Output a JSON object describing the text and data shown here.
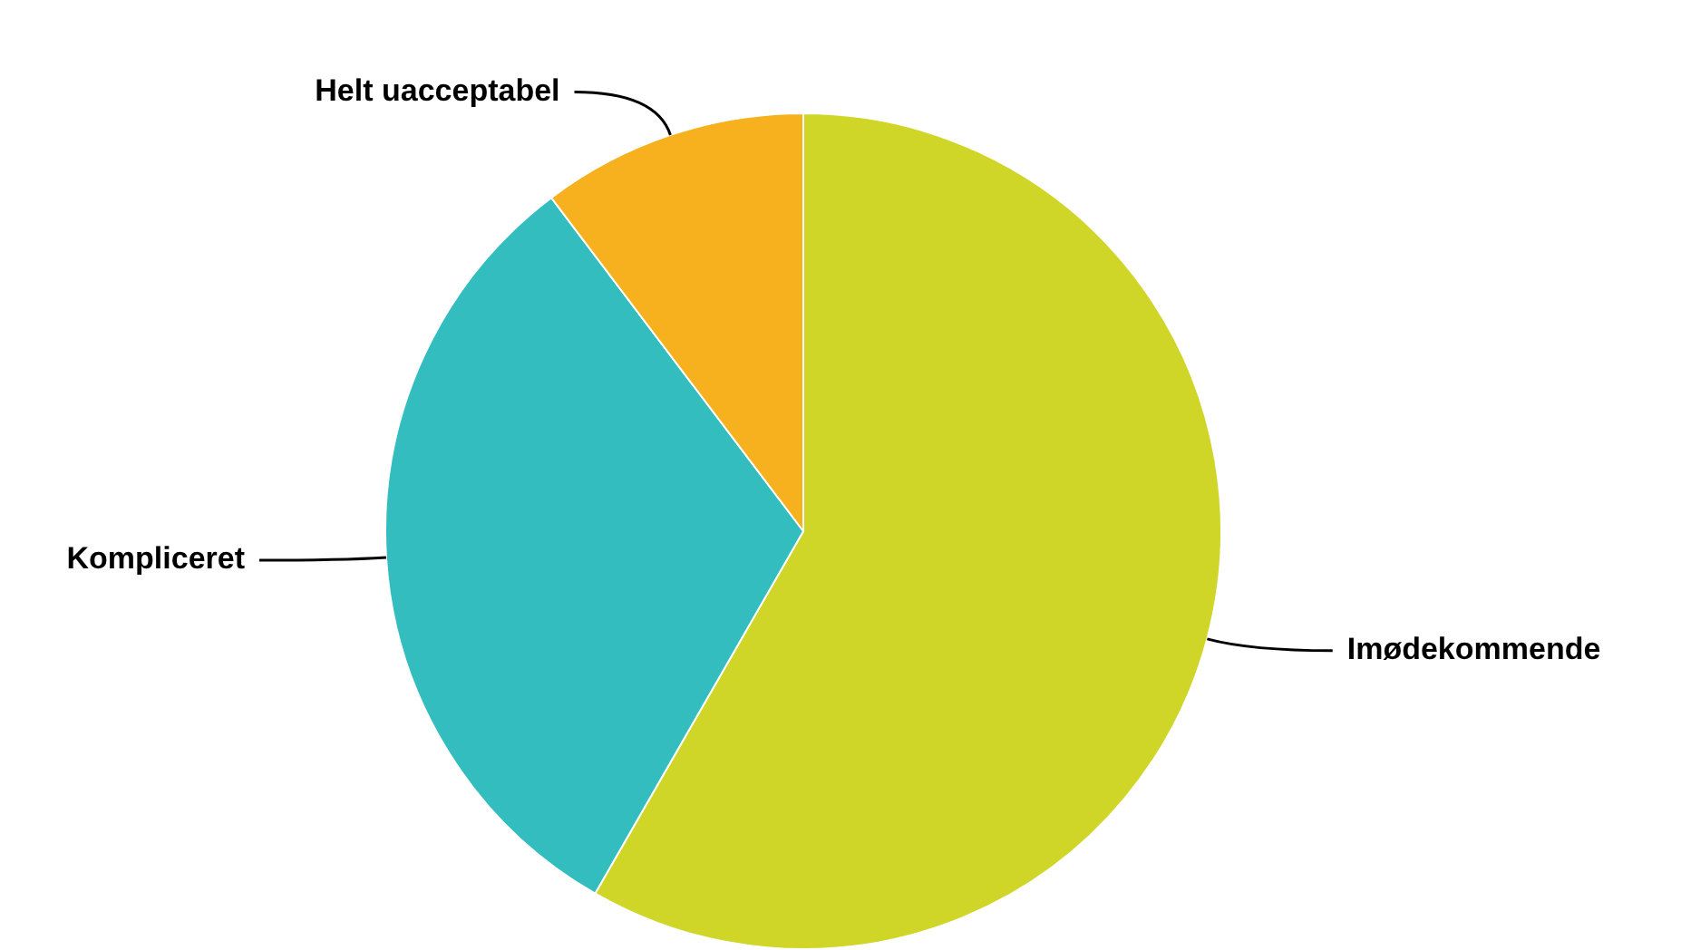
{
  "chart_data": {
    "type": "pie",
    "categories": [
      "Imødekommende",
      "Kompliceret",
      "Helt uacceptabel"
    ],
    "values": [
      58.3,
      31.4,
      10.3
    ],
    "colors": [
      "#cfd628",
      "#34bdbf",
      "#f7b01e"
    ],
    "legend": false
  }
}
